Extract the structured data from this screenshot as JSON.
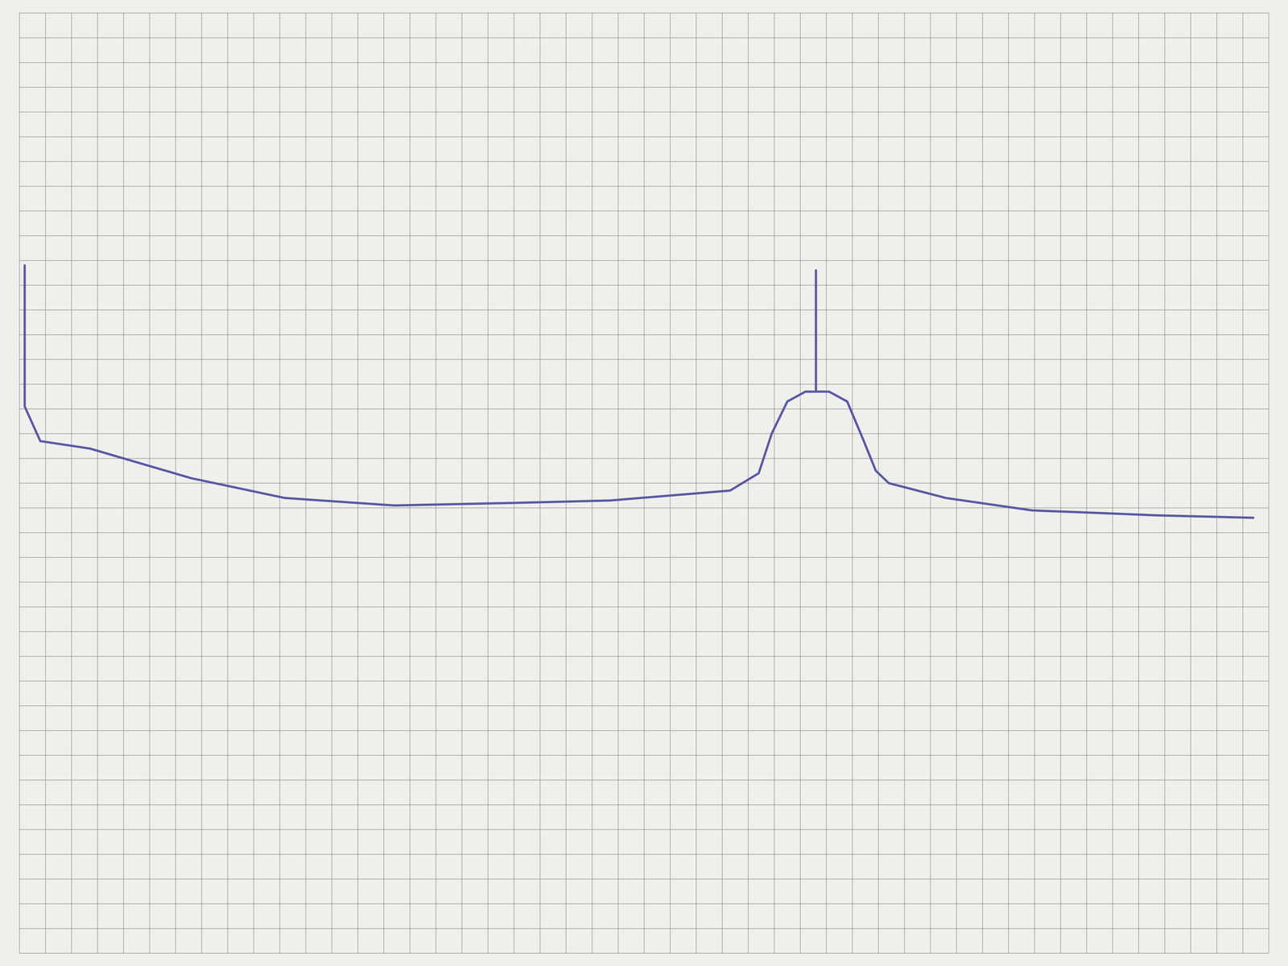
{
  "chart_data": {
    "type": "line",
    "x": [
      0.2,
      0.2,
      0.8,
      2.7,
      6.6,
      10.2,
      14.4,
      18.9,
      22.7,
      27.3,
      28.4,
      28.9,
      29.5,
      30.2,
      30.6,
      30.6,
      30.6,
      31.1,
      31.8,
      32.4,
      32.9,
      33.4,
      35.6,
      38.9,
      43.7,
      47.4
    ],
    "values": [
      27.8,
      22.1,
      20.7,
      20.4,
      19.2,
      18.4,
      18.1,
      18.2,
      18.3,
      18.7,
      19.4,
      21.0,
      22.3,
      22.7,
      22.7,
      27.6,
      22.7,
      22.7,
      22.3,
      20.8,
      19.5,
      19.0,
      18.4,
      17.9,
      17.7,
      17.6
    ],
    "color": "#5b5aa6",
    "xlim": [
      0,
      48
    ],
    "ylim": [
      0,
      38
    ],
    "xticks": [
      0,
      1,
      2,
      3,
      4,
      5,
      6,
      7,
      8,
      9,
      10,
      11,
      12,
      13,
      14,
      15,
      16,
      17,
      18,
      19,
      20,
      21,
      22,
      23,
      24,
      25,
      26,
      27,
      28,
      29,
      30,
      31,
      32,
      33,
      34,
      35,
      36,
      37,
      38,
      39,
      40,
      41,
      42,
      43,
      44,
      45,
      46,
      47,
      48
    ],
    "yticks": [
      0,
      1,
      2,
      3,
      4,
      5,
      6,
      7,
      8,
      9,
      10,
      11,
      12,
      13,
      14,
      15,
      16,
      17,
      18,
      19,
      20,
      21,
      22,
      23,
      24,
      25,
      26,
      27,
      28,
      29,
      30,
      31,
      32,
      33,
      34,
      35,
      36,
      37,
      38
    ],
    "grid": true,
    "tick_labels": false
  }
}
